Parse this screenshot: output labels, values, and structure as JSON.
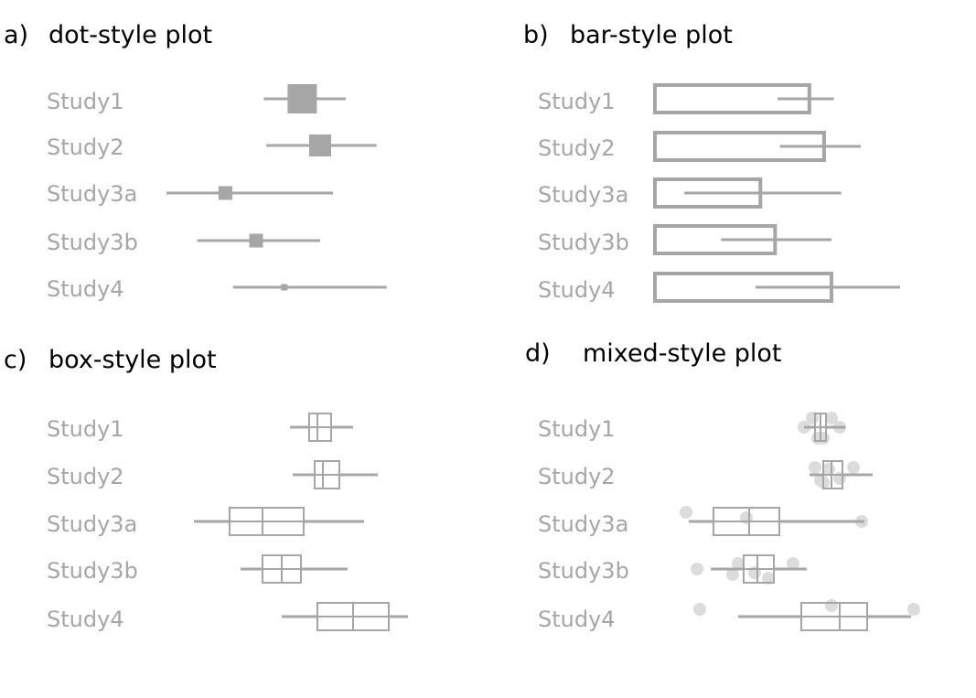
{
  "colors": {
    "mark": "#a6a6a6",
    "dots": "#dcdcdc",
    "title": "#000000"
  },
  "chart_data": [
    {
      "type": "dot-style",
      "letter": "a)",
      "title": "dot-style plot",
      "categories": [
        "Study1",
        "Study2",
        "Study3a",
        "Study3b",
        "Study4"
      ],
      "studies": [
        {
          "name": "Study1",
          "est": 0.53,
          "lo": 0.38,
          "hi": 0.7,
          "size": 32
        },
        {
          "name": "Study2",
          "est": 0.6,
          "lo": 0.39,
          "hi": 0.82,
          "size": 24
        },
        {
          "name": "Study3a",
          "est": 0.23,
          "lo": 0.0,
          "hi": 0.65,
          "size": 15
        },
        {
          "name": "Study3b",
          "est": 0.35,
          "lo": 0.12,
          "hi": 0.6,
          "size": 15
        },
        {
          "name": "Study4",
          "est": 0.46,
          "lo": 0.26,
          "hi": 0.86,
          "size": 7
        }
      ]
    },
    {
      "type": "bar-style",
      "letter": "b)",
      "title": "bar-style plot",
      "categories": [
        "Study1",
        "Study2",
        "Study3a",
        "Study3b",
        "Study4"
      ],
      "studies": [
        {
          "name": "Study1",
          "bar": 0.63,
          "lo": 0.5,
          "hi": 0.73
        },
        {
          "name": "Study2",
          "bar": 0.69,
          "lo": 0.51,
          "hi": 0.84
        },
        {
          "name": "Study3a",
          "bar": 0.43,
          "lo": 0.12,
          "hi": 0.76
        },
        {
          "name": "Study3b",
          "bar": 0.49,
          "lo": 0.27,
          "hi": 0.72
        },
        {
          "name": "Study4",
          "bar": 0.72,
          "lo": 0.41,
          "hi": 1.0
        }
      ]
    },
    {
      "type": "box-style",
      "letter": "c)",
      "title": "box-style plot",
      "categories": [
        "Study1",
        "Study2",
        "Study3a",
        "Study3b",
        "Study4"
      ],
      "studies": [
        {
          "name": "Study1",
          "lo": 0.45,
          "q1": 0.52,
          "med": 0.55,
          "q3": 0.6,
          "hi": 0.68
        },
        {
          "name": "Study2",
          "lo": 0.46,
          "q1": 0.54,
          "med": 0.57,
          "q3": 0.63,
          "hi": 0.77
        },
        {
          "name": "Study3a",
          "lo": 0.1,
          "q1": 0.23,
          "med": 0.35,
          "q3": 0.5,
          "hi": 0.72
        },
        {
          "name": "Study3b",
          "lo": 0.27,
          "q1": 0.35,
          "med": 0.42,
          "q3": 0.49,
          "hi": 0.66
        },
        {
          "name": "Study4",
          "lo": 0.42,
          "q1": 0.55,
          "med": 0.68,
          "q3": 0.81,
          "hi": 0.88
        }
      ]
    },
    {
      "type": "mixed-style",
      "letter": "d)",
      "title": "mixed-style plot",
      "categories": [
        "Study1",
        "Study2",
        "Study3a",
        "Study3b",
        "Study4"
      ],
      "studies": [
        {
          "name": "Study1",
          "lo": 0.53,
          "q1": 0.57,
          "med": 0.59,
          "q3": 0.61,
          "hi": 0.68,
          "points": [
            [
              0.53,
              0.0
            ],
            [
              0.56,
              0.25
            ],
            [
              0.58,
              -0.3
            ],
            [
              0.63,
              0.25
            ],
            [
              0.66,
              0.0
            ],
            [
              0.6,
              -0.3
            ]
          ]
        },
        {
          "name": "Study2",
          "lo": 0.55,
          "q1": 0.6,
          "med": 0.63,
          "q3": 0.67,
          "hi": 0.78,
          "points": [
            [
              0.57,
              0.2
            ],
            [
              0.59,
              -0.15
            ],
            [
              0.62,
              0.15
            ],
            [
              0.71,
              0.2
            ],
            [
              0.66,
              -0.1
            ],
            [
              0.6,
              -0.2
            ]
          ]
        },
        {
          "name": "Study3a",
          "lo": 0.11,
          "q1": 0.2,
          "med": 0.33,
          "q3": 0.44,
          "hi": 0.75,
          "points": [
            [
              0.1,
              0.25
            ],
            [
              0.74,
              0.0
            ],
            [
              0.32,
              0.1
            ]
          ]
        },
        {
          "name": "Study3b",
          "lo": 0.19,
          "q1": 0.31,
          "med": 0.36,
          "q3": 0.42,
          "hi": 0.54,
          "points": [
            [
              0.14,
              0.0
            ],
            [
              0.29,
              0.15
            ],
            [
              0.27,
              -0.15
            ],
            [
              0.4,
              -0.25
            ],
            [
              0.49,
              0.15
            ],
            [
              0.35,
              -0.1
            ]
          ]
        },
        {
          "name": "Study4",
          "lo": 0.29,
          "q1": 0.52,
          "med": 0.66,
          "q3": 0.76,
          "hi": 0.92,
          "points": [
            [
              0.15,
              0.2
            ],
            [
              0.63,
              0.3
            ],
            [
              0.93,
              0.2
            ]
          ]
        }
      ]
    }
  ]
}
